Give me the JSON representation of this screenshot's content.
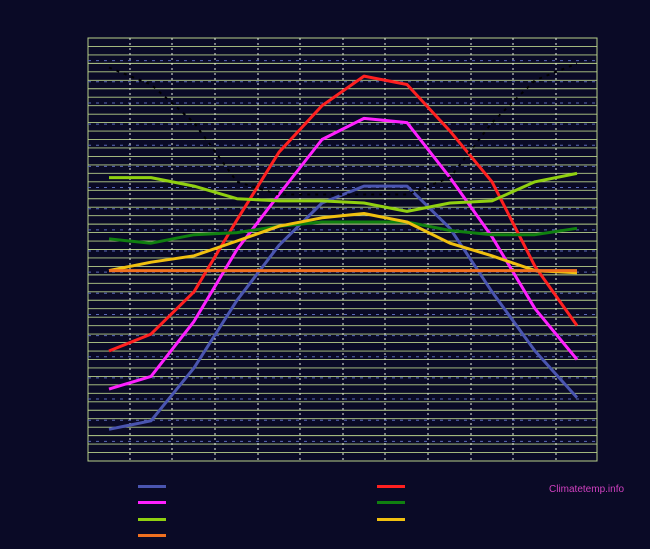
{
  "watermark": "Climatetemp.info",
  "colors": {
    "background": "#0a0a26",
    "grid": "#b8d08a",
    "dotted": "#5a6ab8"
  },
  "chart_data": {
    "type": "line",
    "x": [
      1,
      2,
      3,
      4,
      5,
      6,
      7,
      8,
      9,
      10,
      11,
      12
    ],
    "ylim": [
      0,
      100
    ],
    "grid": true,
    "legend_placement": "bottom",
    "series": [
      {
        "color": "#4a55b0",
        "values": [
          7.5,
          9.5,
          22,
          38,
          51,
          61,
          65,
          65,
          55,
          40,
          26,
          15
        ]
      },
      {
        "color": "#ff2020",
        "values": [
          26,
          30,
          40,
          57,
          73,
          84,
          91,
          89,
          78,
          66,
          46,
          32
        ]
      },
      {
        "color": "#ff20ff",
        "values": [
          17,
          20,
          33,
          50,
          63,
          76,
          81,
          80,
          67,
          53,
          36,
          24
        ]
      },
      {
        "color": "#108010",
        "values": [
          52.5,
          51.5,
          53.5,
          54,
          55.5,
          56.5,
          56.5,
          56.5,
          54.5,
          53.5,
          53.5,
          55
        ]
      },
      {
        "color": "#90d010",
        "values": [
          67,
          67,
          65,
          62,
          61.5,
          61.5,
          61,
          59,
          61,
          61.5,
          66,
          68
        ]
      },
      {
        "color": "#f0c010",
        "values": [
          45,
          47,
          48.5,
          52,
          55.5,
          57.5,
          58.5,
          56.5,
          51.5,
          48.5,
          45,
          44.5
        ]
      },
      {
        "color": "#f07020",
        "values": [
          45,
          45,
          45,
          45,
          45,
          45,
          45,
          45,
          45,
          45,
          45,
          45
        ]
      },
      {
        "color": "#000000",
        "dashed": true,
        "values": [
          93,
          89,
          80,
          66,
          63,
          63,
          63,
          63,
          67,
          80,
          90,
          94
        ]
      }
    ],
    "legend": [
      {
        "color": "#4a55b0",
        "col": 0,
        "row": 0
      },
      {
        "color": "#ff20ff",
        "col": 0,
        "row": 1
      },
      {
        "color": "#90d010",
        "col": 0,
        "row": 2
      },
      {
        "color": "#f07020",
        "col": 0,
        "row": 3
      },
      {
        "color": "#ff2020",
        "col": 1,
        "row": 0
      },
      {
        "color": "#108010",
        "col": 1,
        "row": 1
      },
      {
        "color": "#f0c010",
        "col": 1,
        "row": 2
      }
    ]
  }
}
